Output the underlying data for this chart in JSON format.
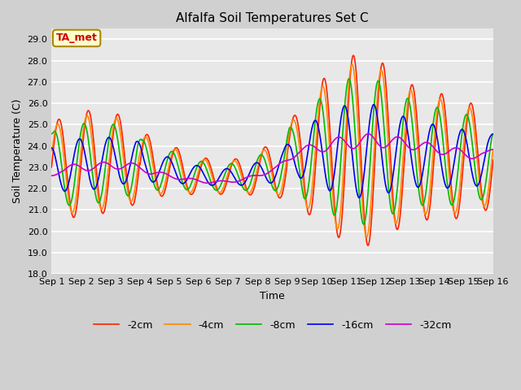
{
  "title": "Alfalfa Soil Temperatures Set C",
  "xlabel": "Time",
  "ylabel": "Soil Temperature (C)",
  "ylim": [
    18.0,
    29.5
  ],
  "yticks": [
    18.0,
    19.0,
    20.0,
    21.0,
    22.0,
    23.0,
    24.0,
    25.0,
    26.0,
    27.0,
    28.0,
    29.0
  ],
  "annotation_text": "TA_met",
  "annotation_bg": "#ffffcc",
  "annotation_fg": "#cc0000",
  "annotation_border": "#aa8800",
  "legend_entries": [
    "-2cm",
    "-4cm",
    "-8cm",
    "-16cm",
    "-32cm"
  ],
  "line_colors": [
    "#ff2200",
    "#ff8800",
    "#00bb00",
    "#0000ee",
    "#cc00cc"
  ],
  "line_width": 1.2,
  "x_start": 0,
  "x_end": 15,
  "x_ticks_pos": [
    0,
    1,
    2,
    3,
    4,
    5,
    6,
    7,
    8,
    9,
    10,
    11,
    12,
    13,
    14,
    15
  ],
  "x_tick_labels": [
    "Sep 1",
    "Sep 2",
    "Sep 3",
    "Sep 4",
    "Sep 5",
    "Sep 6",
    "Sep 7",
    "Sep 8",
    "Sep 9",
    "Sep 10",
    "Sep 11",
    "Sep 12",
    "Sep 13",
    "Sep 14",
    "Sep 15",
    "Sep 16"
  ],
  "bg_outer": "#d0d0d0",
  "bg_plot": "#e8e8e8",
  "grid_color": "#ffffff",
  "title_fontsize": 11,
  "axis_label_fontsize": 9,
  "tick_fontsize": 8
}
